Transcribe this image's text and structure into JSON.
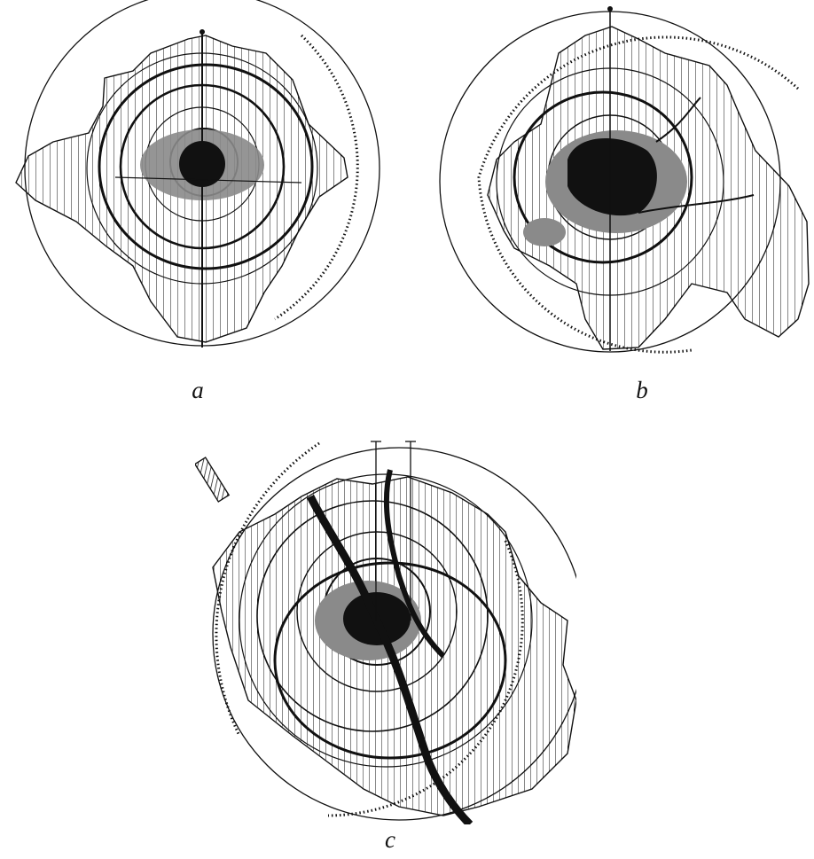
{
  "figure": {
    "panels": [
      {
        "id": "a",
        "label": "a"
      },
      {
        "id": "b",
        "label": "b"
      },
      {
        "id": "c",
        "label": "c"
      }
    ],
    "colors": {
      "ink": "#111111",
      "gray": "#8a8a8a",
      "paper": "#ffffff"
    }
  }
}
